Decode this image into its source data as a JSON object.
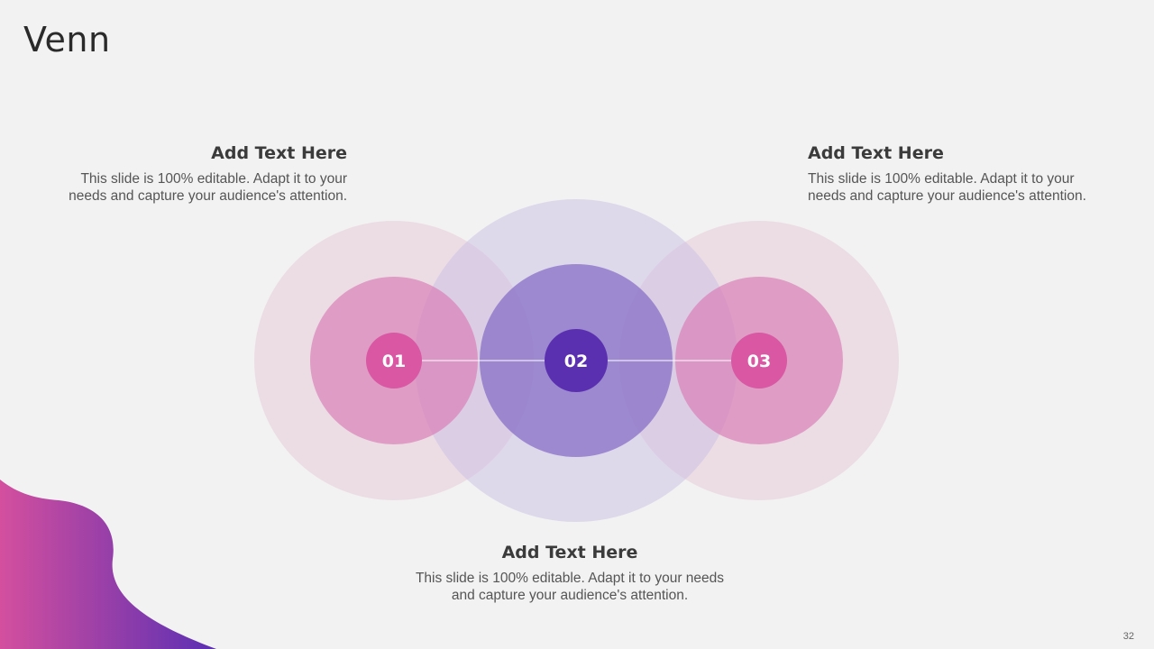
{
  "slide": {
    "title": "Venn",
    "page_number": "32"
  },
  "colors": {
    "pink": "#d957a3",
    "purple": "#5b30b0",
    "pink_mid": "#e29ac5",
    "purple_mid": "#9b88cc",
    "pink_outer": "#ecdde6",
    "purple_outer": "#ddd6ea",
    "wave_gradient_start": "#d44f9e",
    "wave_gradient_end": "#5a2fb3"
  },
  "blocks": [
    {
      "id": "left",
      "heading": "Add Text Here",
      "body_line1": "This slide is 100% editable. Adapt it to your",
      "body_line2": "needs and capture your audience's attention."
    },
    {
      "id": "right",
      "heading": "Add Text Here",
      "body_line1": "This slide is 100% editable. Adapt it to your",
      "body_line2": "needs and capture your audience's attention."
    },
    {
      "id": "bottom",
      "heading": "Add Text Here",
      "body_line1": "This slide is 100% editable. Adapt it to your needs",
      "body_line2": "and capture your audience's attention."
    }
  ],
  "nodes": [
    {
      "label": "01",
      "color": "pink"
    },
    {
      "label": "02",
      "color": "purple"
    },
    {
      "label": "03",
      "color": "pink"
    }
  ]
}
